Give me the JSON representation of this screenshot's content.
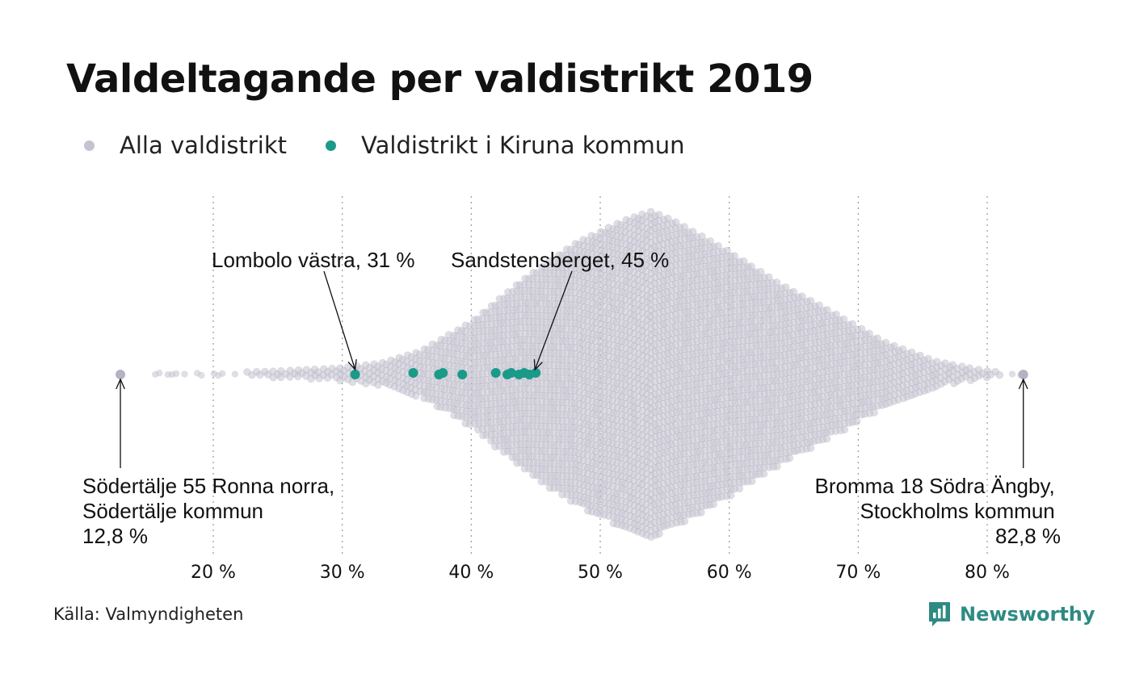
{
  "title": "Valdeltagande per valdistrikt 2019",
  "legend": [
    {
      "label": "Alla valdistrikt",
      "color": "#c4c3d0"
    },
    {
      "label": "Valdistrikt i Kiruna kommun",
      "color": "#1a9a88"
    }
  ],
  "source": "Källa: Valmyndigheten",
  "brand": {
    "name": "Newsworthy",
    "color": "#2e8b84",
    "icon": "bar-chart-speech-bubble-icon"
  },
  "chart_data": {
    "type": "scatter",
    "subtype": "beeswarm",
    "xlim": [
      10,
      85
    ],
    "xticks": [
      20,
      30,
      40,
      50,
      60,
      70,
      80
    ],
    "tick_labels": [
      "20 %",
      "30 %",
      "40 %",
      "50 %",
      "60 %",
      "70 %",
      "80 %"
    ],
    "grid": "vertical-dotted",
    "background_density": [
      [
        16.0,
        0.5
      ],
      [
        20.0,
        1.0
      ],
      [
        25.0,
        2.0
      ],
      [
        30.0,
        4.0
      ],
      [
        33.0,
        7.0
      ],
      [
        36.0,
        14.0
      ],
      [
        40.0,
        32.0
      ],
      [
        44.0,
        58.0
      ],
      [
        48.0,
        80.0
      ],
      [
        52.0,
        95.0
      ],
      [
        54.0,
        100.0
      ],
      [
        56.0,
        93.0
      ],
      [
        60.0,
        75.0
      ],
      [
        64.0,
        55.0
      ],
      [
        68.0,
        38.0
      ],
      [
        72.0,
        20.0
      ],
      [
        76.0,
        8.0
      ],
      [
        80.0,
        2.0
      ],
      [
        83.0,
        0.5
      ]
    ],
    "series": [
      {
        "name": "Alla valdistrikt",
        "color": "#c4c3d0",
        "extremes": [
          12.8,
          82.8
        ]
      },
      {
        "name": "Valdistrikt i Kiruna kommun",
        "color": "#1a9a88",
        "values": [
          31.0,
          35.5,
          37.5,
          37.8,
          39.3,
          41.9,
          42.8,
          43.1,
          43.7,
          44.1,
          44.5,
          45.0
        ]
      }
    ],
    "annotations": [
      {
        "lines": [
          "Lombolo västra, 31 %"
        ],
        "x": 31.0
      },
      {
        "lines": [
          "Sandstensberget, 45 %"
        ],
        "x": 45.0
      },
      {
        "lines": [
          "Södertälje 55 Ronna norra,",
          "Södertälje kommun",
          "12,8 %"
        ],
        "x": 12.8
      },
      {
        "lines": [
          "Bromma 18 Södra Ängby,",
          "Stockholms kommun",
          "82,8 %"
        ],
        "x": 82.8
      }
    ]
  }
}
